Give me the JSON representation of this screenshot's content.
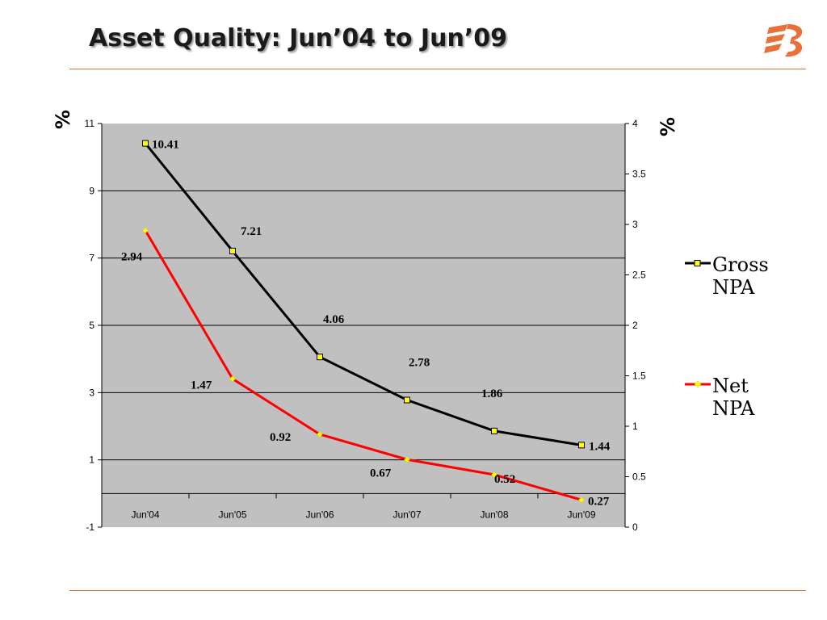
{
  "title": "Asset Quality: Jun’04 to Jun’09",
  "colors": {
    "accent": "#e8703a",
    "plot_bg": "#c0c0c0",
    "gross": "#000000",
    "net": "#ff0000",
    "marker_fill": "#ffff00"
  },
  "chart_data": {
    "type": "line",
    "title": "",
    "categories": [
      "Jun'04",
      "Jun'05",
      "Jun'06",
      "Jun'07",
      "Jun'08",
      "Jun'09"
    ],
    "y_left": {
      "label": "%",
      "range": [
        -1,
        11
      ],
      "ticks": [
        "-1",
        "1",
        "3",
        "5",
        "7",
        "9",
        "11"
      ]
    },
    "y_right": {
      "label": "%",
      "range": [
        0,
        4
      ],
      "ticks": [
        "0",
        "0.5",
        "1",
        "1.5",
        "2",
        "2.5",
        "3",
        "3.5",
        "4"
      ]
    },
    "series": [
      {
        "name": "Gross NPA",
        "axis": "left",
        "values": [
          10.41,
          7.21,
          4.06,
          2.78,
          1.86,
          1.44
        ],
        "labels": [
          "10.41",
          "7.21",
          "4.06",
          "2.78",
          "1.86",
          "1.44"
        ]
      },
      {
        "name": "Net NPA",
        "axis": "right",
        "values": [
          2.94,
          1.47,
          0.92,
          0.67,
          0.52,
          0.27
        ],
        "labels": [
          "2.94",
          "1.47",
          "0.92",
          "0.67",
          "0.52",
          "0.27"
        ]
      }
    ],
    "grid": true,
    "legend_position": "right"
  },
  "legend": {
    "gross_line1": "Gross",
    "gross_line2": "NPA",
    "net_line1": "Net",
    "net_line2": "NPA"
  }
}
